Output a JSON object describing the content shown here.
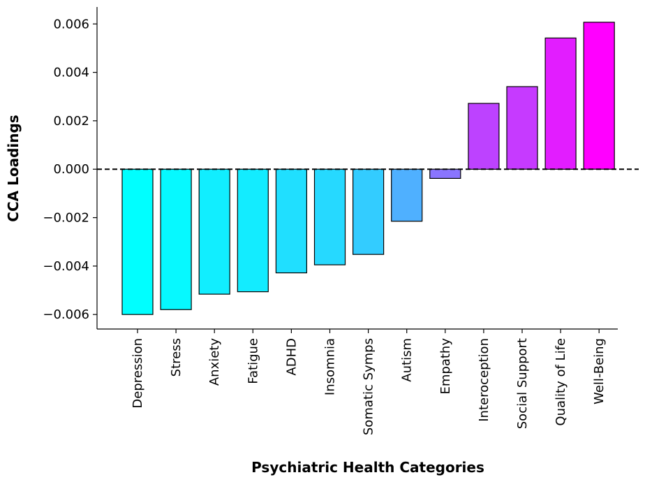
{
  "chart_data": {
    "type": "bar",
    "title": "",
    "xlabel": "Psychiatric Health Categories",
    "ylabel": "CCA Loadings",
    "categories": [
      "Depression",
      "Stress",
      "Anxiety",
      "Fatigue",
      "ADHD",
      "Insomnia",
      "Somatic Symps",
      "Autism",
      "Empathy",
      "Interoception",
      "Social Support",
      "Quality of Life",
      "Well-Being"
    ],
    "values": [
      -0.006,
      -0.0058,
      -0.00516,
      -0.00506,
      -0.00428,
      -0.00395,
      -0.00352,
      -0.00215,
      -0.00038,
      0.00272,
      0.00341,
      0.00542,
      0.00607
    ],
    "colors": [
      "#00ffff",
      "#06f9ff",
      "#11eeff",
      "#13ecff",
      "#20dfff",
      "#26d9ff",
      "#33ccff",
      "#4fb0ff",
      "#8a75ff",
      "#bd42ff",
      "#c63aff",
      "#e21dff",
      "#ff00ff"
    ],
    "ylim": [
      -0.0066,
      0.0067
    ],
    "yticks": [
      -0.006,
      -0.004,
      -0.002,
      0.0,
      0.002,
      0.004,
      0.006
    ],
    "ytick_labels": [
      "−0.006",
      "−0.004",
      "−0.002",
      "0.000",
      "0.002",
      "0.004",
      "0.006"
    ],
    "zero_line": "dashed",
    "grid": false,
    "legend": "none"
  }
}
